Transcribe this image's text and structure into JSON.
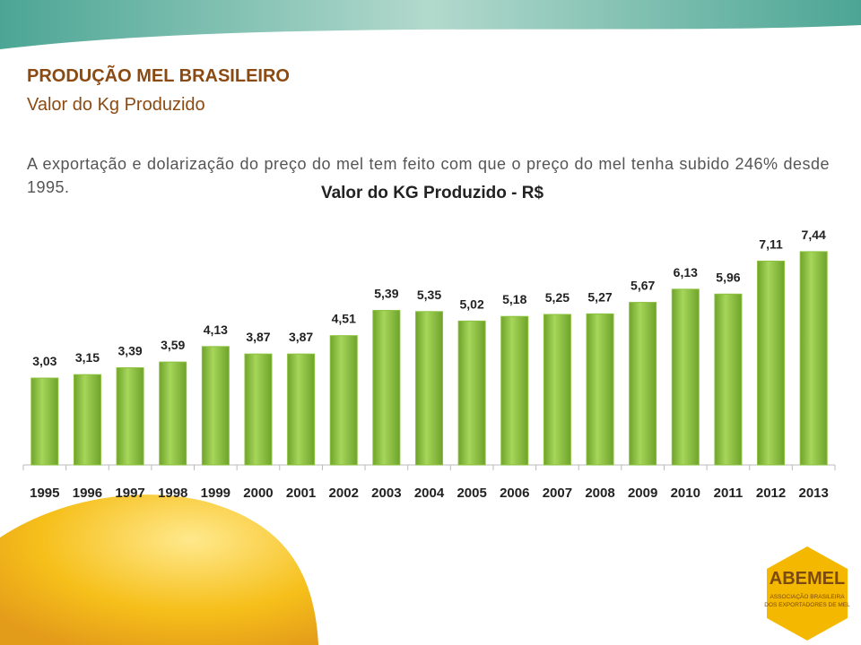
{
  "slide": {
    "title": "PRODUÇÃO MEL BRASILEIRO",
    "subtitle": "Valor do Kg Produzido",
    "body": "A exportação e dolarização do preço do mel tem feito com que o preço do mel tenha subido 246% desde 1995."
  },
  "logo": {
    "name": "ABEMEL",
    "line1": "ASSOCIAÇÃO BRASILEIRA",
    "line2": "DOS EXPORTADORES DE MEL"
  },
  "chart_data": {
    "type": "bar",
    "title": "Valor do KG Produzido - R$",
    "categories": [
      "1995",
      "1996",
      "1997",
      "1998",
      "1999",
      "2000",
      "2001",
      "2002",
      "2003",
      "2004",
      "2005",
      "2006",
      "2007",
      "2008",
      "2009",
      "2010",
      "2011",
      "2012",
      "2013"
    ],
    "values": [
      3.03,
      3.15,
      3.39,
      3.59,
      4.13,
      3.87,
      3.87,
      4.51,
      5.39,
      5.35,
      5.02,
      5.18,
      5.25,
      5.27,
      5.67,
      6.13,
      5.96,
      7.11,
      7.44
    ],
    "value_labels": [
      "3,03",
      "3,15",
      "3,39",
      "3,59",
      "4,13",
      "3,87",
      "3,87",
      "4,51",
      "5,39",
      "5,35",
      "5,02",
      "5,18",
      "5,25",
      "5,27",
      "5,67",
      "6,13",
      "5,96",
      "7,11",
      "7,44"
    ],
    "color": "#8cc13f",
    "ylim": [
      0,
      8
    ]
  }
}
